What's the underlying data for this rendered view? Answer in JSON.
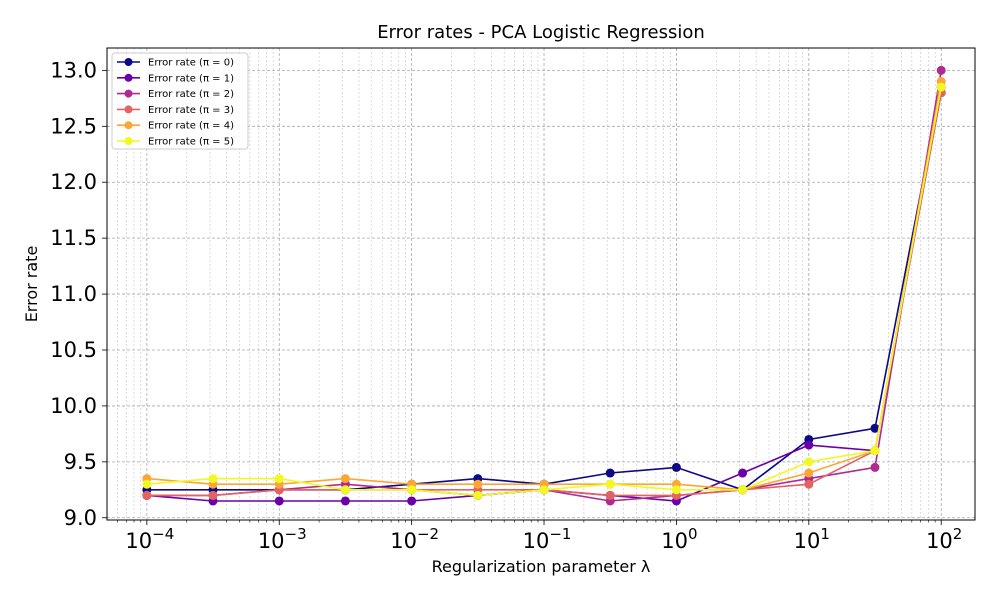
{
  "chart_data": {
    "type": "line",
    "title": "Error rates - PCA Logistic Regression",
    "xlabel": "Regularization parameter λ",
    "ylabel": "Error rate",
    "xscale": "log",
    "xlim": [
      5e-05,
      180
    ],
    "ylim": [
      8.98,
      13.2
    ],
    "grid": "major and minor (dashed)",
    "legend_position": "top-left",
    "x": [
      0.0001,
      0.000316,
      0.001,
      0.00316,
      0.01,
      0.0316,
      0.1,
      0.316,
      1,
      3.16,
      10,
      31.6,
      100
    ],
    "x_ticks": [
      {
        "value": 0.0001,
        "base": "10",
        "exp": "−4"
      },
      {
        "value": 0.001,
        "base": "10",
        "exp": "−3"
      },
      {
        "value": 0.01,
        "base": "10",
        "exp": "−2"
      },
      {
        "value": 0.1,
        "base": "10",
        "exp": "−1"
      },
      {
        "value": 1,
        "base": "10",
        "exp": "0"
      },
      {
        "value": 10,
        "base": "10",
        "exp": "1"
      },
      {
        "value": 100,
        "base": "10",
        "exp": "2"
      }
    ],
    "y_ticks": [
      "9.0",
      "9.5",
      "10.0",
      "10.5",
      "11.0",
      "11.5",
      "12.0",
      "12.5",
      "13.0"
    ],
    "series": [
      {
        "name": "Error rate (π = 0)",
        "color": "#0d0887",
        "values": [
          9.25,
          9.25,
          9.25,
          9.25,
          9.3,
          9.35,
          9.3,
          9.4,
          9.45,
          9.25,
          9.7,
          9.8,
          12.85
        ]
      },
      {
        "name": "Error rate (π = 1)",
        "color": "#6a00a8",
        "values": [
          9.2,
          9.15,
          9.15,
          9.15,
          9.15,
          9.2,
          9.25,
          9.2,
          9.15,
          9.4,
          9.65,
          9.6,
          12.8
        ]
      },
      {
        "name": "Error rate (π = 2)",
        "color": "#b12a90",
        "values": [
          9.2,
          9.2,
          9.25,
          9.3,
          9.25,
          9.2,
          9.25,
          9.15,
          9.2,
          9.25,
          9.35,
          9.45,
          13.0
        ]
      },
      {
        "name": "Error rate (π = 3)",
        "color": "#e16462",
        "values": [
          9.2,
          9.2,
          9.25,
          9.25,
          9.25,
          9.25,
          9.25,
          9.2,
          9.2,
          9.25,
          9.3,
          9.6,
          12.8
        ]
      },
      {
        "name": "Error rate (π = 4)",
        "color": "#fca636",
        "values": [
          9.35,
          9.3,
          9.3,
          9.35,
          9.3,
          9.3,
          9.3,
          9.3,
          9.3,
          9.25,
          9.4,
          9.6,
          12.9
        ]
      },
      {
        "name": "Error rate (π = 5)",
        "color": "#f0f921",
        "values": [
          9.3,
          9.35,
          9.35,
          9.25,
          9.25,
          9.2,
          9.25,
          9.3,
          9.25,
          9.25,
          9.5,
          9.6,
          12.85
        ]
      }
    ]
  }
}
